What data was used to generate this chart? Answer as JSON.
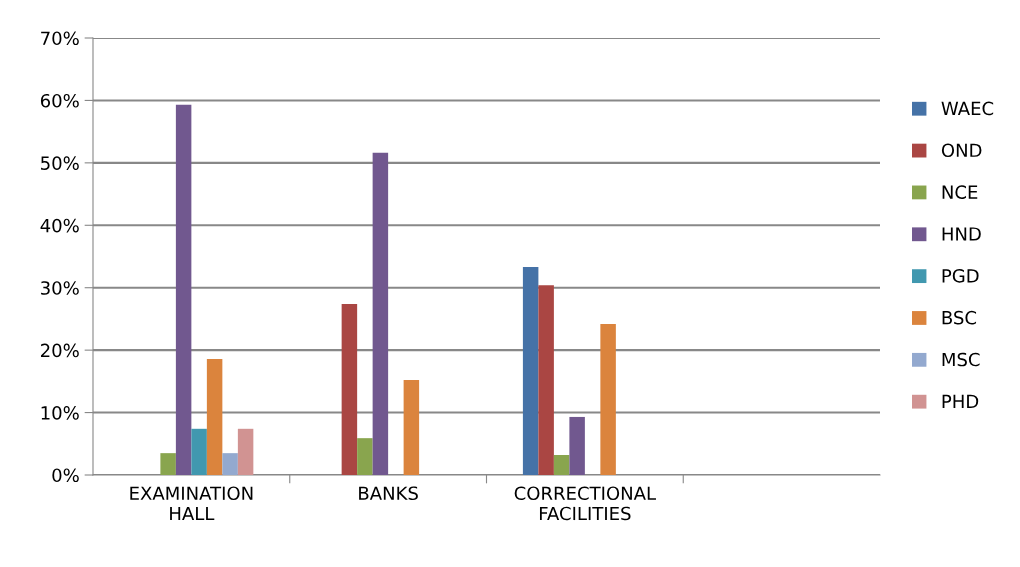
{
  "chart_data": {
    "type": "bar",
    "categories": [
      "EXAMINATION HALL",
      "BANKS",
      "CORRECTIONAL FACILITIES",
      null
    ],
    "series": [
      {
        "name": "WAEC",
        "color": "#4572a7",
        "values": [
          null,
          null,
          33.3,
          null
        ]
      },
      {
        "name": "OND",
        "color": "#aa4643",
        "values": [
          null,
          27.4,
          30.4,
          null
        ]
      },
      {
        "name": "NCE",
        "color": "#89a54e",
        "values": [
          3.5,
          5.9,
          3.2,
          null
        ]
      },
      {
        "name": "HND",
        "color": "#71588f",
        "values": [
          59.3,
          51.6,
          9.3,
          null
        ]
      },
      {
        "name": "PGD",
        "color": "#4198af",
        "values": [
          7.4,
          null,
          null,
          null
        ]
      },
      {
        "name": "BSC",
        "color": "#db843d",
        "values": [
          18.6,
          15.2,
          24.2,
          null
        ]
      },
      {
        "name": "MSC",
        "color": "#93a9cf",
        "values": [
          3.5,
          null,
          null,
          null
        ]
      },
      {
        "name": "PHD",
        "color": "#d19392",
        "values": [
          7.4,
          null,
          null,
          null
        ]
      }
    ],
    "ylim": [
      0,
      70
    ],
    "yticks": [
      {
        "value": 0,
        "label": "0%"
      },
      {
        "value": 10,
        "label": "10%"
      },
      {
        "value": 20,
        "label": "20%"
      },
      {
        "value": 30,
        "label": "30%"
      },
      {
        "value": 40,
        "label": "40%"
      },
      {
        "value": 50,
        "label": "50%"
      },
      {
        "value": 60,
        "label": "60%"
      },
      {
        "value": 70,
        "label": "70%"
      }
    ],
    "grid": "y",
    "legend": "right"
  }
}
